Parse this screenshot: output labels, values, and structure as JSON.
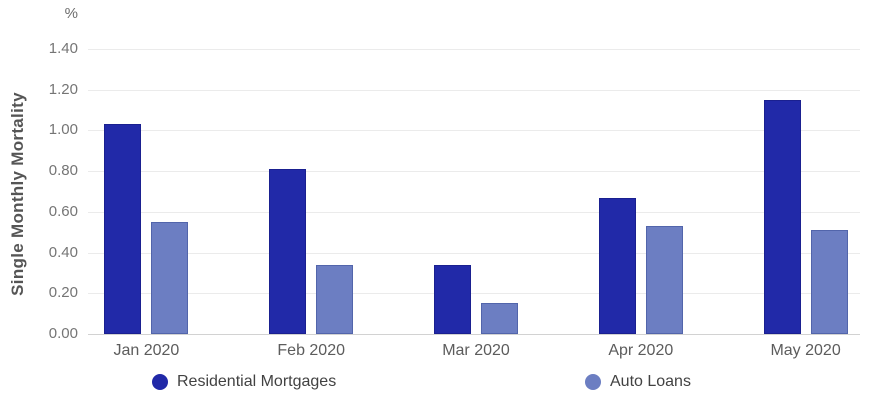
{
  "chart_data": {
    "type": "bar",
    "title": "",
    "unit_label": "%",
    "ylabel": "Single Monthly Mortality",
    "xlabel": "",
    "categories": [
      "Jan 2020",
      "Feb 2020",
      "Mar 2020",
      "Apr 2020",
      "May 2020"
    ],
    "series": [
      {
        "name": "Residential Mortgages",
        "color": "#2129a8",
        "values": [
          1.03,
          0.81,
          0.34,
          0.67,
          1.15
        ]
      },
      {
        "name": "Auto Loans",
        "color": "#6c7ec2",
        "values": [
          0.55,
          0.34,
          0.15,
          0.53,
          0.51
        ]
      }
    ],
    "ylim": [
      0.0,
      1.4
    ],
    "ytick_step": 0.2,
    "yticks": [
      "0.00",
      "0.20",
      "0.40",
      "0.60",
      "0.80",
      "1.00",
      "1.20",
      "1.40"
    ],
    "grid": true,
    "legend_position": "bottom"
  },
  "colors": {
    "background": "#ffffff",
    "gridline": "#ebebeb",
    "baseline": "#d2d2d2",
    "tick_text": "#757575",
    "axis_label_text": "#5c5c5c",
    "legend_text": "#424242",
    "y_title_text": "#555555"
  }
}
